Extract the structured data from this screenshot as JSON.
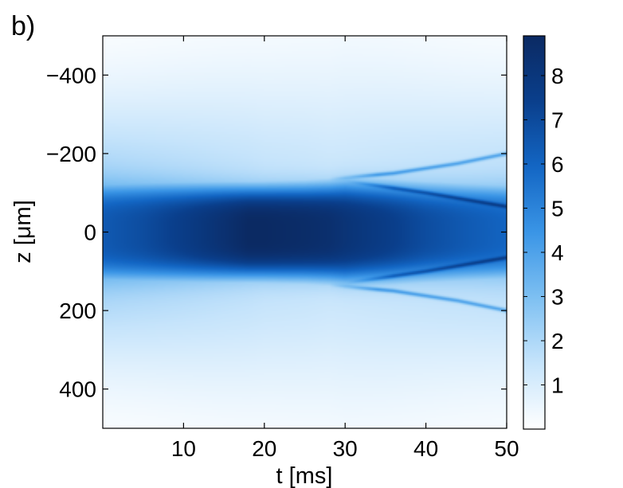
{
  "panel_label": "b)",
  "chart_data": {
    "type": "heatmap",
    "title": "",
    "xlabel": "t [ms]",
    "ylabel": "z [μm]",
    "xlim": [
      0,
      50
    ],
    "ylim": [
      -500,
      500
    ],
    "y_direction": "reversed",
    "x_ticks": [
      10,
      20,
      30,
      40,
      50
    ],
    "x_tick_labels": [
      "10",
      "20",
      "30",
      "40",
      "50"
    ],
    "y_ticks": [
      -400,
      -200,
      0,
      200,
      400
    ],
    "y_tick_labels": [
      "−400",
      "−200",
      "0",
      "200",
      "400"
    ],
    "colorbar": {
      "range": [
        0,
        8.9
      ],
      "ticks": [
        1,
        2,
        3,
        4,
        5,
        6,
        7,
        8
      ],
      "tick_labels": [
        "1",
        "2",
        "3",
        "4",
        "5",
        "6",
        "7",
        "8"
      ],
      "colormap": [
        "#ffffff",
        "#c6e4fb",
        "#7ec0f2",
        "#3a95e6",
        "#1366c4",
        "#0a3f8c",
        "#0b2a63"
      ]
    },
    "density_profile": {
      "t": [
        0,
        5,
        10,
        15,
        18,
        20,
        25,
        28,
        30,
        35,
        40,
        45,
        50
      ],
      "core_amplitude": [
        6.4,
        6.9,
        7.6,
        8.4,
        8.9,
        8.9,
        8.7,
        8.5,
        8.2,
        7.6,
        6.9,
        6.4,
        6.0
      ],
      "core_halfwidth_um": [
        130,
        128,
        125,
        122,
        120,
        120,
        122,
        125,
        130,
        128,
        125,
        123,
        122
      ],
      "halo_amplitude": [
        2.6,
        2.4,
        2.2,
        2.0,
        1.9,
        1.8,
        1.7,
        1.6,
        1.6,
        1.7,
        1.8,
        1.9,
        2.0
      ],
      "halo_width_um": [
        190,
        205,
        225,
        245,
        255,
        260,
        270,
        275,
        280,
        270,
        255,
        240,
        230
      ]
    },
    "fronts": [
      {
        "t": [
          28,
          36,
          44,
          50
        ],
        "z": [
          135,
          150,
          175,
          200
        ],
        "amplitude": 2.5
      },
      {
        "t": [
          30,
          40,
          50
        ],
        "z": [
          130,
          100,
          65
        ],
        "amplitude": 2.2
      }
    ],
    "grid": false,
    "legend": "none"
  }
}
